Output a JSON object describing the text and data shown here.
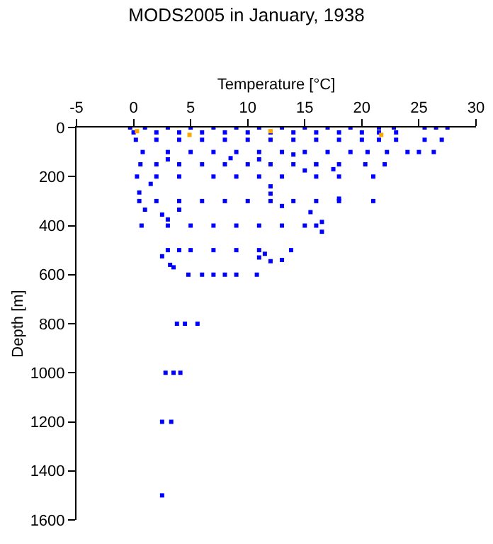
{
  "chart_data": {
    "type": "scatter",
    "title": "MODS2005 in January, 1938",
    "xlabel": "Temperature [°C]",
    "ylabel": "Depth [m]",
    "xlim": [
      -5,
      30
    ],
    "xticks": [
      -5,
      0,
      5,
      10,
      15,
      20,
      25,
      30
    ],
    "ylim": [
      1600,
      0
    ],
    "yticks": [
      0,
      200,
      400,
      600,
      800,
      1000,
      1200,
      1400,
      1600
    ],
    "grid": false,
    "marker": "square",
    "series": [
      {
        "color": "#0000ff",
        "x": [
          -0.3,
          1,
          3,
          5,
          7,
          9,
          11,
          13,
          15,
          17,
          19,
          21.5,
          22.8,
          25.5,
          26.5,
          27.5,
          0,
          2,
          4,
          6,
          8,
          10,
          12,
          14,
          16,
          18,
          20,
          21.5,
          23,
          0.2,
          2,
          4,
          6,
          8,
          10,
          12,
          14,
          16,
          18,
          20,
          21.5,
          23,
          25.5,
          27,
          0.8,
          3,
          5,
          7,
          9,
          11,
          13,
          15,
          17,
          19,
          20.5,
          22.2,
          24,
          25,
          26.3,
          0.6,
          2,
          4,
          6,
          8,
          10,
          12,
          14,
          16,
          18,
          20.3,
          22,
          0.3,
          2,
          4,
          7,
          9,
          11,
          13,
          16,
          18,
          21,
          0.5,
          2,
          4,
          6,
          8,
          10,
          12,
          14,
          16,
          18,
          21,
          0.7,
          3,
          5,
          7,
          9,
          11,
          13,
          15,
          16,
          3,
          4,
          5,
          7,
          9,
          11,
          13.8,
          4.8,
          6,
          7,
          8,
          9,
          10.8,
          3.8,
          4.5,
          5.6,
          2.8,
          3.5,
          4.1,
          2.5,
          3.3,
          2.5,
          1.5,
          0.5,
          1,
          2.5,
          3,
          4,
          15.5,
          16.5,
          16.5,
          12,
          12,
          13,
          18,
          2.5,
          3.2,
          3.5,
          11.5,
          12,
          13,
          11,
          14,
          15,
          17.5,
          16,
          8.5,
          3,
          11
        ],
        "values": [
          0,
          0,
          0,
          0,
          0,
          0,
          0,
          0,
          0,
          0,
          0,
          0,
          0,
          0,
          0,
          0,
          20,
          20,
          20,
          20,
          20,
          20,
          20,
          20,
          20,
          20,
          20,
          20,
          20,
          50,
          50,
          50,
          50,
          50,
          50,
          50,
          50,
          50,
          50,
          50,
          50,
          50,
          50,
          50,
          100,
          100,
          100,
          100,
          100,
          100,
          100,
          100,
          100,
          100,
          100,
          100,
          100,
          100,
          100,
          150,
          150,
          150,
          150,
          150,
          150,
          150,
          150,
          150,
          150,
          150,
          150,
          200,
          200,
          200,
          200,
          200,
          200,
          200,
          200,
          200,
          200,
          300,
          300,
          300,
          300,
          300,
          300,
          300,
          300,
          300,
          300,
          300,
          400,
          400,
          400,
          400,
          400,
          400,
          400,
          400,
          400,
          500,
          500,
          500,
          500,
          500,
          500,
          500,
          600,
          600,
          600,
          600,
          600,
          600,
          800,
          800,
          800,
          1000,
          1000,
          1000,
          1200,
          1200,
          1500,
          230,
          265,
          335,
          355,
          375,
          335,
          345,
          425,
          385,
          240,
          270,
          320,
          290,
          525,
          560,
          570,
          515,
          545,
          540,
          530,
          110,
          175,
          170,
          150,
          125,
          130,
          130
        ]
      },
      {
        "color": "#ffa500",
        "x": [
          0.3,
          4.9,
          12,
          21.7
        ],
        "values": [
          15,
          30,
          15,
          30
        ]
      }
    ]
  }
}
